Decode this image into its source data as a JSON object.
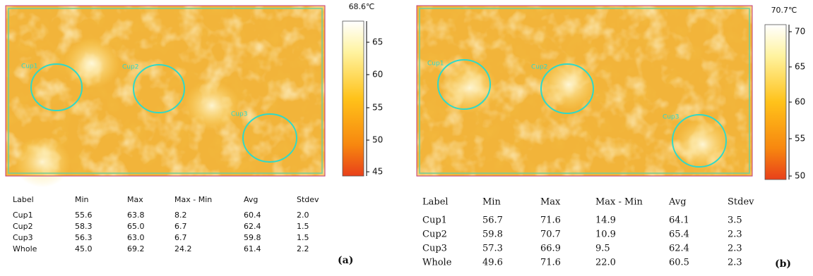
{
  "panels": [
    {
      "label": "(a)",
      "colorbar": {
        "max_label": "68.6℃",
        "ticks": [
          "65",
          "60",
          "55",
          "50",
          "45"
        ]
      },
      "rois": [
        "Cup1",
        "Cup2",
        "Cup3"
      ],
      "table": {
        "header": [
          "Label",
          "Min",
          "Max",
          "Max - Min",
          "Avg",
          "Stdev"
        ],
        "rows": [
          [
            "Cup1",
            "55.6",
            "63.8",
            "8.2",
            "60.4",
            "2.0"
          ],
          [
            "Cup2",
            "58.3",
            "65.0",
            "6.7",
            "62.4",
            "1.5"
          ],
          [
            "Cup3",
            "56.3",
            "63.0",
            "6.7",
            "59.8",
            "1.5"
          ],
          [
            "Whole",
            "45.0",
            "69.2",
            "24.2",
            "61.4",
            "2.2"
          ]
        ]
      }
    },
    {
      "label": "(b)",
      "colorbar": {
        "max_label": "70.7℃",
        "ticks": [
          "70",
          "65",
          "60",
          "55",
          "50"
        ]
      },
      "rois": [
        "Cup1",
        "Cup2",
        "Cup3"
      ],
      "table": {
        "header": [
          "Label",
          "Min",
          "Max",
          "Max - Min",
          "Avg",
          "Stdev"
        ],
        "rows": [
          [
            "Cup1",
            "56.7",
            "71.6",
            "14.9",
            "64.1",
            "3.5"
          ],
          [
            "Cup2",
            "59.8",
            "70.7",
            "10.9",
            "65.4",
            "2.3"
          ],
          [
            "Cup3",
            "57.3",
            "66.9",
            "9.5",
            "62.4",
            "2.3"
          ],
          [
            "Whole",
            "49.6",
            "71.6",
            "22.0",
            "60.5",
            "2.3"
          ]
        ]
      }
    }
  ]
}
